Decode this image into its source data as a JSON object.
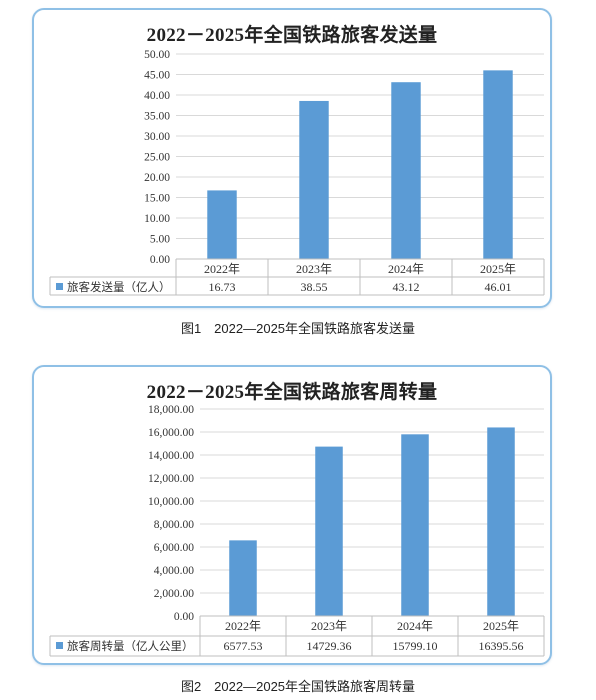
{
  "chart_data": [
    {
      "type": "bar",
      "title": "2022－2025年全国铁路旅客发送量",
      "caption": "图1　2022—2025年全国铁路旅客发送量",
      "categories": [
        "2022年",
        "2023年",
        "2024年",
        "2025年"
      ],
      "series": [
        {
          "name": "旅客发送量（亿人）",
          "values": [
            16.73,
            38.55,
            43.12,
            46.01
          ],
          "value_labels": [
            "16.73",
            "38.55",
            "43.12",
            "46.01"
          ],
          "color": "#5b9bd5"
        }
      ],
      "yticks": [
        "0.00",
        "5.00",
        "10.00",
        "15.00",
        "20.00",
        "25.00",
        "30.00",
        "35.00",
        "40.00",
        "45.00",
        "50.00"
      ],
      "ylim": [
        0,
        50
      ],
      "grid": true,
      "legend": "data-table"
    },
    {
      "type": "bar",
      "title": "2022－2025年全国铁路旅客周转量",
      "caption": "图2　2022—2025年全国铁路旅客周转量",
      "categories": [
        "2022年",
        "2023年",
        "2024年",
        "2025年"
      ],
      "series": [
        {
          "name": "旅客周转量（亿人公里）",
          "values": [
            6577.53,
            14729.36,
            15799.1,
            16395.56
          ],
          "value_labels": [
            "6577.53",
            "14729.36",
            "15799.10",
            "16395.56"
          ],
          "color": "#5b9bd5"
        }
      ],
      "yticks": [
        "0.00",
        "2,000.00",
        "4,000.00",
        "6,000.00",
        "8,000.00",
        "10,000.00",
        "12,000.00",
        "14,000.00",
        "16,000.00",
        "18,000.00"
      ],
      "ylim": [
        0,
        18000
      ],
      "grid": true,
      "legend": "data-table"
    }
  ]
}
